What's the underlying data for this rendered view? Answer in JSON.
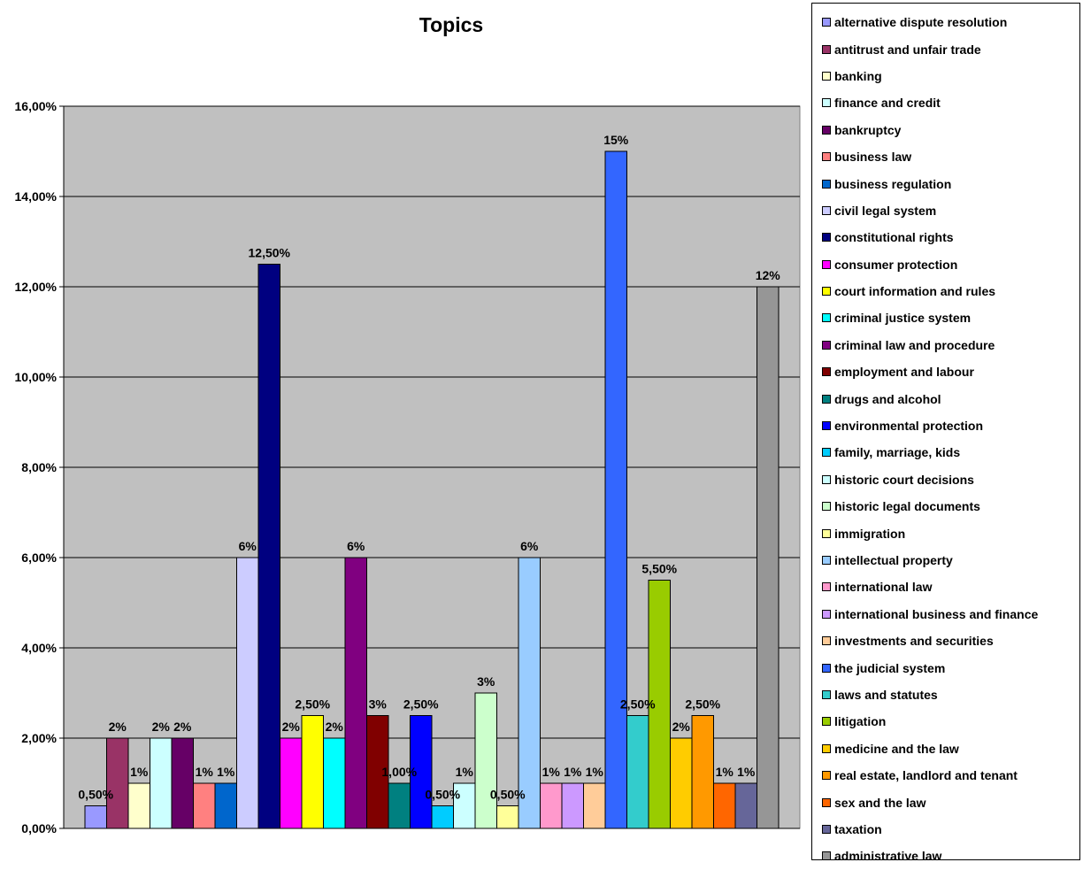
{
  "chart_data": {
    "type": "bar",
    "title": "Topics",
    "xlabel": "",
    "ylabel": "",
    "ylim": [
      0,
      16
    ],
    "yticks": [
      "0,00%",
      "2,00%",
      "4,00%",
      "6,00%",
      "8,00%",
      "10,00%",
      "12,00%",
      "14,00%",
      "16,00%"
    ],
    "grid": true,
    "plot_background": "#c0c0c0",
    "legend_position": "right",
    "series": [
      {
        "name": "alternative dispute resolution",
        "value": 0.5,
        "label": "0,50%",
        "color": "#9999ff"
      },
      {
        "name": "antitrust and unfair trade",
        "value": 2,
        "label": "2%",
        "color": "#993366"
      },
      {
        "name": "banking",
        "value": 1,
        "label": "1%",
        "color": "#ffffcc"
      },
      {
        "name": "finance and credit",
        "value": 2,
        "label": "2%",
        "color": "#ccffff"
      },
      {
        "name": "bankruptcy",
        "value": 2,
        "label": "2%",
        "color": "#660066"
      },
      {
        "name": "business law",
        "value": 1,
        "label": "1%",
        "color": "#ff8080"
      },
      {
        "name": "business regulation",
        "value": 1,
        "label": "1%",
        "color": "#0066cc"
      },
      {
        "name": "civil legal system",
        "value": 6,
        "label": "6%",
        "color": "#ccccff"
      },
      {
        "name": "constitutional rights",
        "value": 12.5,
        "label": "12,50%",
        "color": "#000080"
      },
      {
        "name": "consumer protection",
        "value": 2,
        "label": "2%",
        "color": "#ff00ff"
      },
      {
        "name": "court information and rules",
        "value": 2.5,
        "label": "2,50%",
        "color": "#ffff00"
      },
      {
        "name": "criminal justice system",
        "value": 2,
        "label": "2%",
        "color": "#00ffff"
      },
      {
        "name": "criminal law and procedure",
        "value": 6,
        "label": "6%",
        "color": "#800080"
      },
      {
        "name": "employment and labour",
        "value": 2.5,
        "label": "3%",
        "color": "#800000"
      },
      {
        "name": "drugs and alcohol",
        "value": 1,
        "label": "1,00%",
        "color": "#008080"
      },
      {
        "name": "environmental protection",
        "value": 2.5,
        "label": "2,50%",
        "color": "#0000ff"
      },
      {
        "name": "family, marriage, kids",
        "value": 0.5,
        "label": "0,50%",
        "color": "#00ccff"
      },
      {
        "name": "historic court decisions",
        "value": 1,
        "label": "1%",
        "color": "#ccffff"
      },
      {
        "name": "historic legal documents",
        "value": 3,
        "label": "3%",
        "color": "#ccffcc"
      },
      {
        "name": "immigration",
        "value": 0.5,
        "label": "0,50%",
        "color": "#ffff99"
      },
      {
        "name": "intellectual property",
        "value": 6,
        "label": "6%",
        "color": "#99ccff"
      },
      {
        "name": "international law",
        "value": 1,
        "label": "1%",
        "color": "#ff99cc"
      },
      {
        "name": "international business and finance",
        "value": 1,
        "label": "1%",
        "color": "#cc99ff"
      },
      {
        "name": "investments and securities",
        "value": 1,
        "label": "1%",
        "color": "#ffcc99"
      },
      {
        "name": "the judicial system",
        "value": 15,
        "label": "15%",
        "color": "#3366ff"
      },
      {
        "name": "laws and statutes",
        "value": 2.5,
        "label": "2,50%",
        "color": "#33cccc"
      },
      {
        "name": "litigation",
        "value": 5.5,
        "label": "5,50%",
        "color": "#99cc00"
      },
      {
        "name": "medicine and the law",
        "value": 2,
        "label": "2%",
        "color": "#ffcc00"
      },
      {
        "name": "real estate, landlord and tenant",
        "value": 2.5,
        "label": "2,50%",
        "color": "#ff9900"
      },
      {
        "name": "sex and the law",
        "value": 1,
        "label": "1%",
        "color": "#ff6600"
      },
      {
        "name": "taxation",
        "value": 1,
        "label": "1%",
        "color": "#666699"
      },
      {
        "name": "administrative law",
        "value": 12,
        "label": "12%",
        "color": "#969696"
      }
    ]
  }
}
